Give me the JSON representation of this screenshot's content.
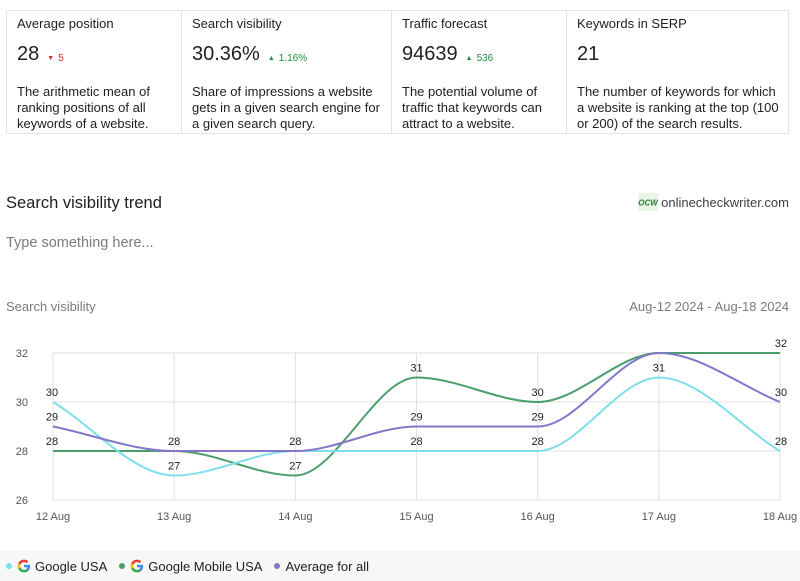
{
  "cards": [
    {
      "title": "Average position",
      "value": "28",
      "delta": "5",
      "direction": "down",
      "desc": "The arithmetic mean of ranking positions of all keywords of a website."
    },
    {
      "title": "Search visibility",
      "value": "30.36%",
      "delta": "1.16%",
      "direction": "up",
      "desc": "Share of impressions a website gets in a given search engine for a given search query."
    },
    {
      "title": "Traffic forecast",
      "value": "94639",
      "delta": "536",
      "direction": "up",
      "desc": "The potential volume of traffic that keywords can attract to a website."
    },
    {
      "title": "Keywords in SERP",
      "value": "21",
      "desc": "The number of keywords for which a website is ranking at the top (100 or 200) of the search results."
    }
  ],
  "section_title": "Search visibility trend",
  "brand": {
    "text": "onlinecheckwriter.com",
    "logo_icon": "ocw-logo-icon"
  },
  "note_placeholder": "Type something here...",
  "chart_label": "Search visibility",
  "date_range": "Aug-12 2024 - Aug-18 2024",
  "colors": {
    "google_usa": "#80deea",
    "google_mobile_usa": "#4a9e6b",
    "average": "#8476c9",
    "grid": "#e0e0e0",
    "up": "#1e8e3e",
    "down": "#d93025"
  },
  "chart_data": {
    "type": "line",
    "categories": [
      "12 Aug",
      "13 Aug",
      "14 Aug",
      "15 Aug",
      "16 Aug",
      "17 Aug",
      "18 Aug"
    ],
    "ylim": [
      26,
      32
    ],
    "yticks": [
      "26",
      "28",
      "30",
      "32"
    ],
    "series": [
      {
        "name": "Google USA",
        "color": "#80deea",
        "values": [
          30,
          27,
          28,
          28,
          28,
          31,
          28
        ],
        "icon": "google-g-icon"
      },
      {
        "name": "Google Mobile USA",
        "color": "#4a9e6b",
        "values": [
          28,
          28,
          27,
          31,
          30,
          32,
          32
        ],
        "icon": "google-g-icon"
      },
      {
        "name": "Average for all",
        "color": "#8476c9",
        "values": [
          29,
          28,
          28,
          29,
          29,
          32,
          30
        ]
      }
    ],
    "data_labels": [
      [
        "30",
        "29",
        "28"
      ],
      [
        "28",
        "27"
      ],
      [
        "28",
        "27"
      ],
      [
        "31",
        "29",
        "28"
      ],
      [
        "30",
        "29",
        "28"
      ],
      [
        "31"
      ],
      [
        "32",
        "30",
        "28"
      ]
    ],
    "grid": true,
    "legend": "bottom-left"
  }
}
